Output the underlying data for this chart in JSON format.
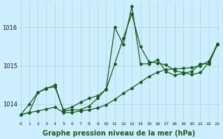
{
  "bg_color": "#cceeff",
  "grid_color": "#b0d4d4",
  "line_color": "#1a5c1a",
  "xlabel": "Graphe pression niveau de la mer (hPa)",
  "xlabel_fontsize": 7,
  "x_ticks": [
    0,
    1,
    2,
    3,
    4,
    5,
    6,
    7,
    8,
    9,
    10,
    11,
    12,
    13,
    14,
    15,
    16,
    17,
    18,
    19,
    20,
    21,
    22,
    23
  ],
  "xlim": [
    -0.3,
    23.3
  ],
  "ylim": [
    1013.55,
    1016.65
  ],
  "yticks": [
    1014,
    1015,
    1016
  ],
  "series_spiky": [
    1013.72,
    1013.78,
    1014.3,
    1014.4,
    1014.5,
    1013.82,
    1013.85,
    1013.85,
    1013.95,
    1014.15,
    1014.4,
    1016.0,
    1015.55,
    1016.55,
    1015.05,
    1015.05,
    1015.15,
    1014.85,
    1014.75,
    1014.8,
    1014.85,
    1015.05,
    1015.05,
    1015.55
  ],
  "series_mid": [
    1013.72,
    1014.0,
    1014.3,
    1014.42,
    1014.45,
    1013.85,
    1013.92,
    1014.05,
    1014.15,
    1014.22,
    1014.38,
    1015.05,
    1015.72,
    1016.35,
    1015.5,
    1015.1,
    1015.07,
    1015.02,
    1014.87,
    1014.82,
    1014.77,
    1014.82,
    1015.08,
    1015.58
  ],
  "series_linear": [
    1013.72,
    1013.78,
    1013.82,
    1013.87,
    1013.92,
    1013.78,
    1013.78,
    1013.82,
    1013.85,
    1013.9,
    1013.98,
    1014.12,
    1014.28,
    1014.42,
    1014.57,
    1014.72,
    1014.83,
    1014.9,
    1014.92,
    1014.93,
    1014.95,
    1015.0,
    1015.12,
    1015.55
  ]
}
